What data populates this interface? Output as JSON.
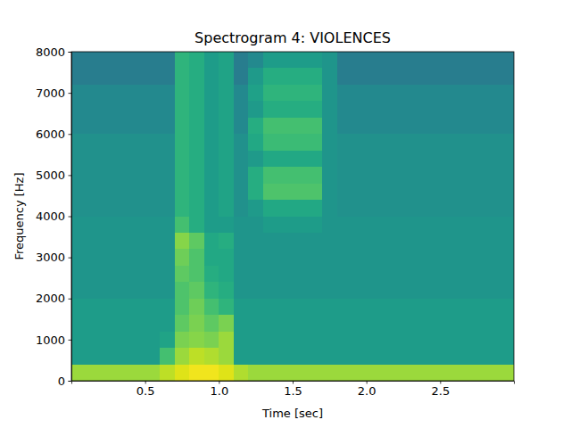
{
  "chart_data": {
    "type": "heatmap",
    "title": "Spectrogram 4: VIOLENCES",
    "x_label": "Time [sec]",
    "y_label": "Frequency [Hz]",
    "color": "viridis",
    "xlim": [
      0,
      3.0
    ],
    "ylim": [
      0,
      8000
    ],
    "xticks": [
      0.5,
      {
        "value": 1,
        "label": "1.0"
      },
      1.5,
      {
        "value": 2,
        "label": "2.0"
      },
      2.5
    ],
    "yticks": [
      0,
      1000,
      2000,
      3000,
      4000,
      5000,
      6000,
      7000,
      8000
    ],
    "zlim": [
      0,
      1
    ],
    "x": [
      0,
      0.1,
      0.2,
      0.3,
      0.4,
      0.5,
      0.6,
      0.7,
      0.8,
      0.9,
      1.0,
      1.1,
      1.2,
      1.3,
      1.4,
      1.5,
      1.6,
      1.7,
      1.8,
      1.9,
      2.0,
      2.1,
      2.2,
      2.3,
      2.4,
      2.5,
      2.6,
      2.7,
      2.8,
      2.9
    ],
    "y": [
      0,
      400,
      800,
      1200,
      1600,
      2000,
      2400,
      2800,
      3200,
      3600,
      4000,
      4400,
      4800,
      5200,
      5600,
      6000,
      6400,
      6800,
      7200,
      7600
    ],
    "z": [
      [
        0.85,
        0.85,
        0.85,
        0.85,
        0.85,
        0.85,
        0.9,
        0.95,
        0.98,
        0.98,
        0.95,
        0.88,
        0.85,
        0.85,
        0.85,
        0.85,
        0.85,
        0.85,
        0.85,
        0.85,
        0.85,
        0.85,
        0.85,
        0.85,
        0.85,
        0.85,
        0.85,
        0.85,
        0.85,
        0.85
      ],
      [
        0.55,
        0.55,
        0.55,
        0.55,
        0.55,
        0.55,
        0.7,
        0.85,
        0.9,
        0.88,
        0.85,
        0.55,
        0.55,
        0.55,
        0.55,
        0.55,
        0.55,
        0.55,
        0.55,
        0.55,
        0.55,
        0.55,
        0.55,
        0.55,
        0.55,
        0.55,
        0.55,
        0.55,
        0.55,
        0.55
      ],
      [
        0.55,
        0.55,
        0.55,
        0.55,
        0.55,
        0.55,
        0.58,
        0.8,
        0.82,
        0.8,
        0.85,
        0.55,
        0.55,
        0.55,
        0.55,
        0.55,
        0.55,
        0.55,
        0.55,
        0.55,
        0.55,
        0.55,
        0.55,
        0.55,
        0.55,
        0.55,
        0.55,
        0.55,
        0.55,
        0.55
      ],
      [
        0.55,
        0.55,
        0.55,
        0.55,
        0.55,
        0.55,
        0.55,
        0.75,
        0.8,
        0.75,
        0.8,
        0.55,
        0.55,
        0.55,
        0.55,
        0.55,
        0.55,
        0.55,
        0.55,
        0.55,
        0.55,
        0.55,
        0.55,
        0.55,
        0.55,
        0.55,
        0.55,
        0.55,
        0.55,
        0.55
      ],
      [
        0.55,
        0.55,
        0.55,
        0.55,
        0.55,
        0.55,
        0.55,
        0.72,
        0.78,
        0.7,
        0.65,
        0.55,
        0.55,
        0.55,
        0.55,
        0.55,
        0.55,
        0.55,
        0.55,
        0.55,
        0.55,
        0.55,
        0.55,
        0.55,
        0.55,
        0.55,
        0.55,
        0.55,
        0.55,
        0.55
      ],
      [
        0.52,
        0.52,
        0.52,
        0.52,
        0.52,
        0.52,
        0.52,
        0.72,
        0.75,
        0.65,
        0.62,
        0.52,
        0.52,
        0.52,
        0.52,
        0.52,
        0.52,
        0.52,
        0.52,
        0.52,
        0.52,
        0.52,
        0.52,
        0.52,
        0.52,
        0.52,
        0.52,
        0.52,
        0.52,
        0.52
      ],
      [
        0.52,
        0.52,
        0.52,
        0.52,
        0.52,
        0.52,
        0.52,
        0.75,
        0.72,
        0.62,
        0.6,
        0.52,
        0.52,
        0.52,
        0.52,
        0.52,
        0.52,
        0.52,
        0.52,
        0.52,
        0.52,
        0.52,
        0.52,
        0.52,
        0.52,
        0.52,
        0.52,
        0.52,
        0.52,
        0.52
      ],
      [
        0.52,
        0.52,
        0.52,
        0.52,
        0.52,
        0.52,
        0.52,
        0.78,
        0.72,
        0.6,
        0.6,
        0.52,
        0.52,
        0.52,
        0.52,
        0.52,
        0.52,
        0.52,
        0.52,
        0.52,
        0.52,
        0.52,
        0.52,
        0.52,
        0.52,
        0.52,
        0.52,
        0.52,
        0.52,
        0.52
      ],
      [
        0.52,
        0.52,
        0.52,
        0.52,
        0.52,
        0.52,
        0.52,
        0.82,
        0.75,
        0.6,
        0.62,
        0.52,
        0.52,
        0.52,
        0.52,
        0.52,
        0.52,
        0.52,
        0.52,
        0.52,
        0.52,
        0.52,
        0.52,
        0.52,
        0.52,
        0.52,
        0.52,
        0.52,
        0.52,
        0.52
      ],
      [
        0.52,
        0.52,
        0.52,
        0.52,
        0.52,
        0.52,
        0.52,
        0.7,
        0.62,
        0.55,
        0.55,
        0.52,
        0.52,
        0.55,
        0.55,
        0.55,
        0.55,
        0.52,
        0.52,
        0.52,
        0.52,
        0.52,
        0.52,
        0.52,
        0.52,
        0.52,
        0.52,
        0.52,
        0.52,
        0.52
      ],
      [
        0.5,
        0.5,
        0.5,
        0.5,
        0.5,
        0.5,
        0.5,
        0.65,
        0.62,
        0.55,
        0.58,
        0.5,
        0.54,
        0.6,
        0.6,
        0.6,
        0.6,
        0.52,
        0.5,
        0.5,
        0.5,
        0.5,
        0.5,
        0.5,
        0.5,
        0.5,
        0.5,
        0.5,
        0.5,
        0.5
      ],
      [
        0.5,
        0.5,
        0.5,
        0.5,
        0.5,
        0.5,
        0.5,
        0.65,
        0.62,
        0.55,
        0.58,
        0.5,
        0.62,
        0.72,
        0.72,
        0.72,
        0.72,
        0.52,
        0.5,
        0.5,
        0.5,
        0.5,
        0.5,
        0.5,
        0.5,
        0.5,
        0.5,
        0.5,
        0.5,
        0.5
      ],
      [
        0.5,
        0.5,
        0.5,
        0.5,
        0.5,
        0.5,
        0.5,
        0.65,
        0.62,
        0.55,
        0.58,
        0.5,
        0.62,
        0.7,
        0.7,
        0.7,
        0.7,
        0.52,
        0.5,
        0.5,
        0.5,
        0.5,
        0.5,
        0.5,
        0.5,
        0.5,
        0.5,
        0.5,
        0.5,
        0.5
      ],
      [
        0.5,
        0.5,
        0.5,
        0.5,
        0.5,
        0.5,
        0.5,
        0.65,
        0.62,
        0.55,
        0.58,
        0.5,
        0.54,
        0.6,
        0.6,
        0.6,
        0.6,
        0.52,
        0.5,
        0.5,
        0.5,
        0.5,
        0.5,
        0.5,
        0.5,
        0.5,
        0.5,
        0.5,
        0.5,
        0.5
      ],
      [
        0.5,
        0.5,
        0.5,
        0.5,
        0.5,
        0.5,
        0.5,
        0.65,
        0.62,
        0.55,
        0.58,
        0.5,
        0.6,
        0.68,
        0.68,
        0.68,
        0.68,
        0.52,
        0.5,
        0.5,
        0.5,
        0.5,
        0.5,
        0.5,
        0.5,
        0.5,
        0.5,
        0.5,
        0.5,
        0.5
      ],
      [
        0.47,
        0.47,
        0.47,
        0.47,
        0.47,
        0.47,
        0.47,
        0.65,
        0.62,
        0.55,
        0.58,
        0.47,
        0.62,
        0.7,
        0.7,
        0.7,
        0.7,
        0.52,
        0.47,
        0.47,
        0.47,
        0.47,
        0.47,
        0.47,
        0.47,
        0.47,
        0.47,
        0.47,
        0.47,
        0.47
      ],
      [
        0.47,
        0.47,
        0.47,
        0.47,
        0.47,
        0.47,
        0.47,
        0.65,
        0.62,
        0.55,
        0.58,
        0.47,
        0.54,
        0.62,
        0.62,
        0.62,
        0.62,
        0.52,
        0.47,
        0.47,
        0.47,
        0.47,
        0.47,
        0.47,
        0.47,
        0.47,
        0.47,
        0.47,
        0.47,
        0.47
      ],
      [
        0.47,
        0.47,
        0.47,
        0.47,
        0.47,
        0.47,
        0.47,
        0.65,
        0.62,
        0.55,
        0.58,
        0.47,
        0.57,
        0.65,
        0.65,
        0.65,
        0.65,
        0.52,
        0.47,
        0.47,
        0.47,
        0.47,
        0.47,
        0.47,
        0.47,
        0.47,
        0.47,
        0.47,
        0.47,
        0.47
      ],
      [
        0.42,
        0.42,
        0.42,
        0.42,
        0.42,
        0.42,
        0.42,
        0.65,
        0.62,
        0.55,
        0.58,
        0.42,
        0.54,
        0.62,
        0.62,
        0.62,
        0.62,
        0.52,
        0.42,
        0.42,
        0.42,
        0.42,
        0.42,
        0.42,
        0.42,
        0.42,
        0.42,
        0.42,
        0.42,
        0.42
      ],
      [
        0.42,
        0.42,
        0.42,
        0.42,
        0.42,
        0.42,
        0.42,
        0.65,
        0.62,
        0.55,
        0.58,
        0.42,
        0.47,
        0.55,
        0.55,
        0.55,
        0.55,
        0.52,
        0.42,
        0.42,
        0.42,
        0.42,
        0.42,
        0.42,
        0.42,
        0.42,
        0.42,
        0.42,
        0.42,
        0.42
      ]
    ]
  }
}
